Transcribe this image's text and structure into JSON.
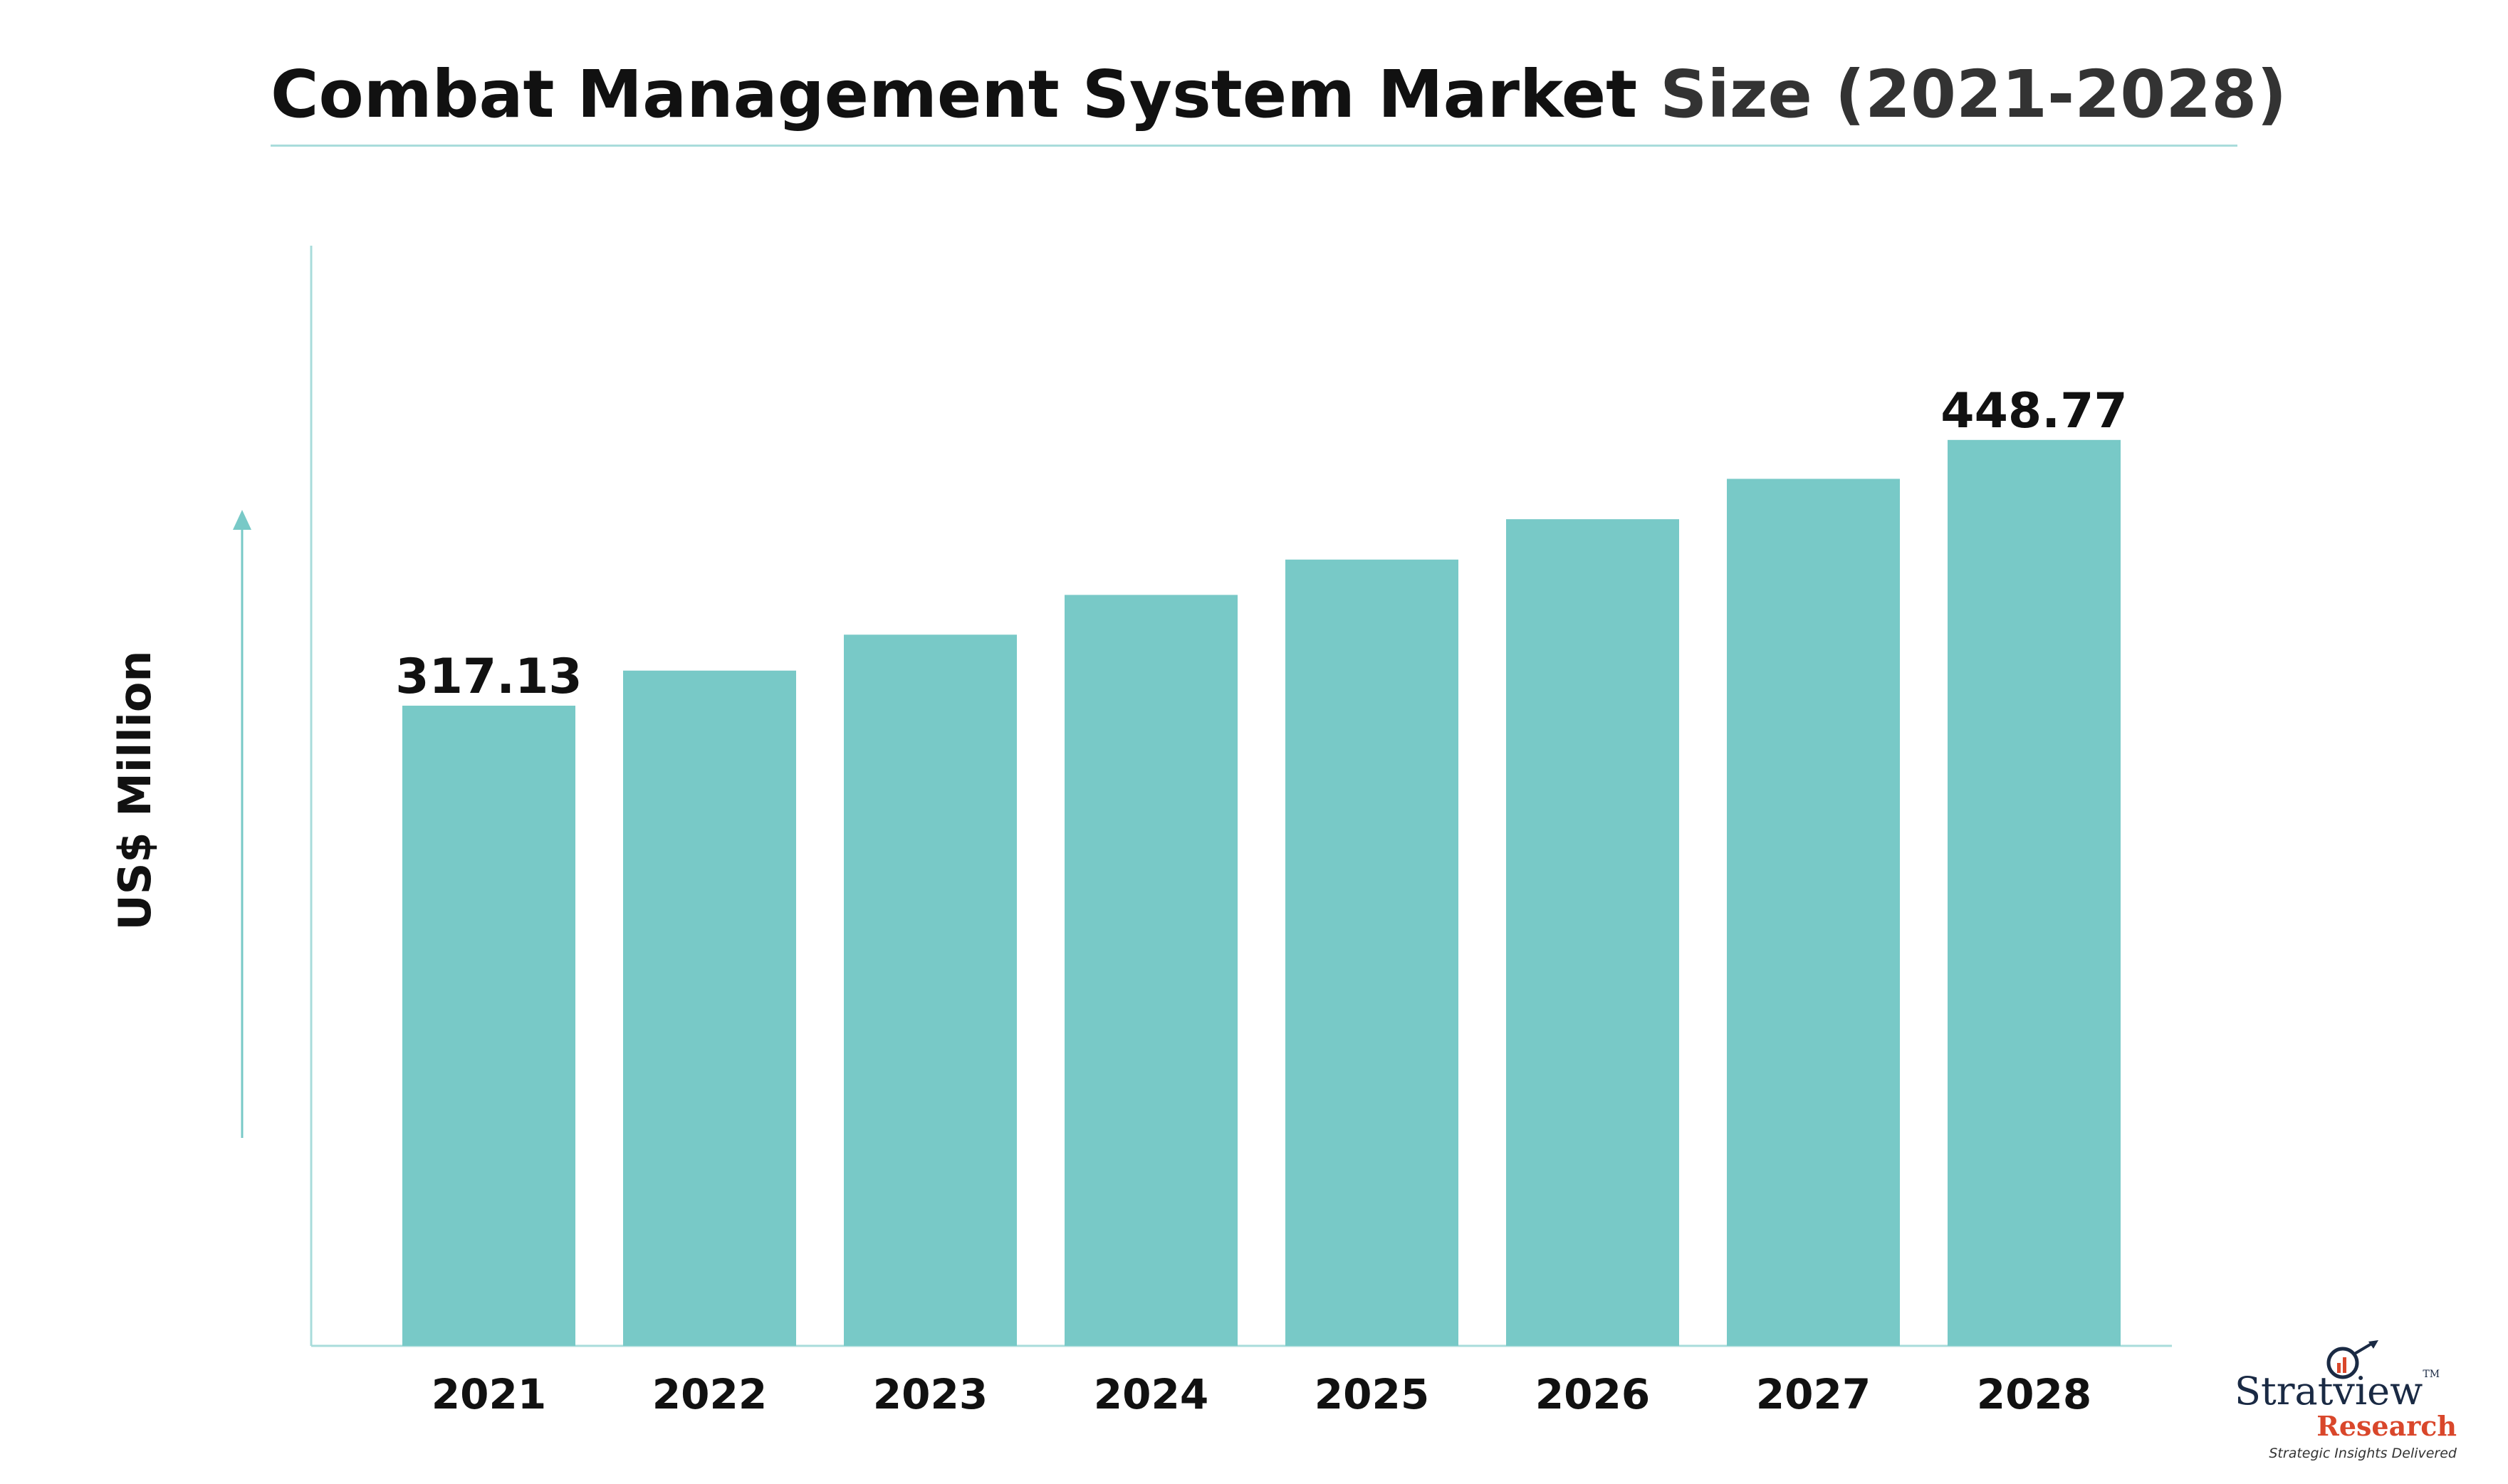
{
  "title": {
    "part1": "Combat Management System Market",
    "part2": "Size (2021-2028)"
  },
  "colors": {
    "bar": "#78c9c7",
    "axis": "#a9dcdb",
    "text": "#111111",
    "logo_blue": "#1a2a44",
    "logo_red": "#d9472b"
  },
  "logo": {
    "name": "Stratview",
    "tm": "TM",
    "sub": "Research",
    "tagline": "Strategic Insights Delivered"
  },
  "chart_data": {
    "type": "bar",
    "categories": [
      "2021",
      "2022",
      "2023",
      "2024",
      "2025",
      "2026",
      "2027",
      "2028"
    ],
    "values": [
      317.13,
      334.5,
      352.3,
      372.0,
      389.5,
      409.5,
      429.5,
      448.77
    ],
    "data_labels": [
      "317.13",
      "",
      "",
      "",
      "",
      "",
      "",
      "448.77"
    ],
    "ylabel": "US$ Million",
    "xlabel": "",
    "ylim": [
      0,
      545
    ],
    "grid": false
  }
}
